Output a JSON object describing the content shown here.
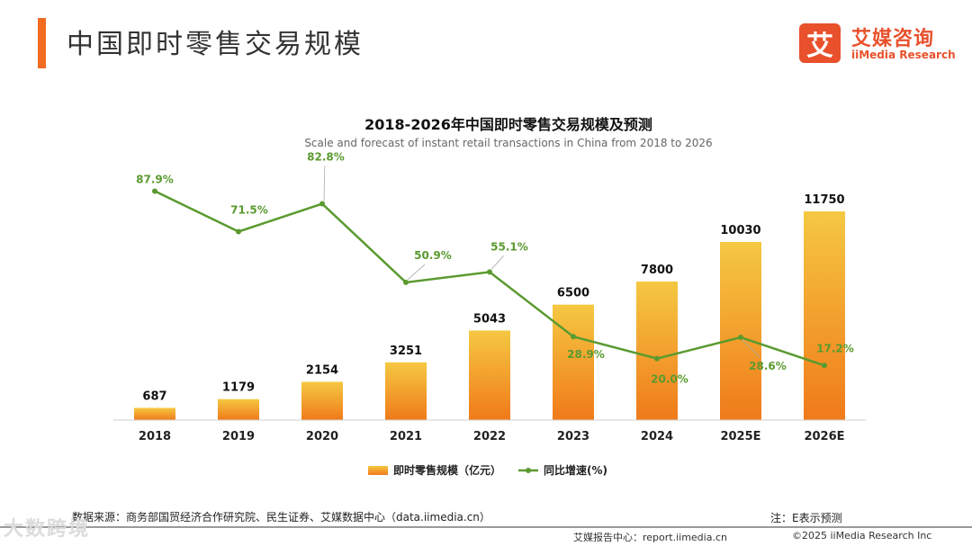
{
  "header": {
    "title": "中国即时零售交易规模",
    "accent_color": "#f26b21"
  },
  "logo": {
    "glyph": "艾",
    "name_cn": "艾媒咨询",
    "name_en": "iiMedia Research",
    "color": "#e8512b"
  },
  "chart_data": {
    "type": "bar",
    "title": "2018-2026年中国即时零售交易规模及预测",
    "subtitle": "Scale and forecast of instant retail transactions in China from 2018 to 2026",
    "categories": [
      "2018",
      "2019",
      "2020",
      "2021",
      "2022",
      "2023",
      "2024",
      "2025E",
      "2026E"
    ],
    "series": [
      {
        "name": "即时零售规模（亿元）",
        "kind": "bar",
        "values": [
          687,
          1179,
          2154,
          3251,
          5043,
          6500,
          7800,
          10030,
          11750
        ],
        "labels": [
          "687",
          "1179",
          "2154",
          "3251",
          "5043",
          "6500",
          "7800",
          "10030",
          "11750"
        ],
        "color_top": "#f5c842",
        "color_bottom": "#f07a1a"
      },
      {
        "name": "同比增速(%)",
        "kind": "line",
        "values": [
          87.9,
          71.5,
          82.8,
          50.9,
          55.1,
          28.9,
          20.0,
          28.6,
          17.2
        ],
        "labels": [
          "87.9%",
          "71.5%",
          "82.8%",
          "50.9%",
          "55.1%",
          "28.9%",
          "20.0%",
          "28.6%",
          "17.2%"
        ],
        "color": "#5a9a2f"
      }
    ],
    "bar_ylim": [
      0,
      12000
    ],
    "line_ylim": [
      0,
      100
    ],
    "legend_position": "bottom"
  },
  "footer": {
    "source": "数据来源：商务部国贸经济合作研究院、民生证券、艾媒数据中心（data.iimedia.cn）",
    "note": "注：E表示预测",
    "report_center": "艾媒报告中心：report.iimedia.cn",
    "copyright": "©2025  iiMedia Research  Inc",
    "watermark": "大数跨境"
  }
}
